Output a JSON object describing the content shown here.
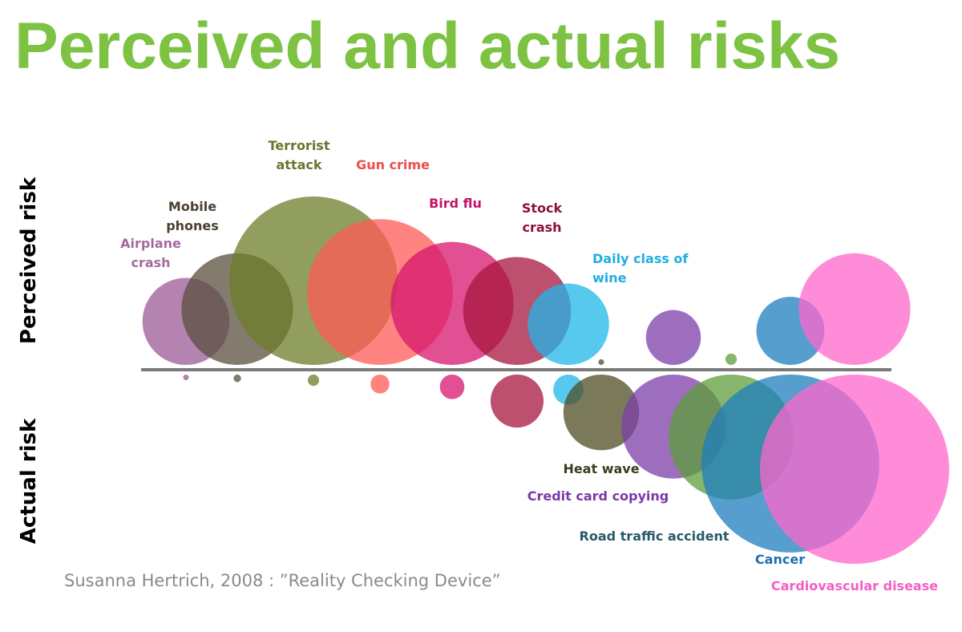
{
  "title": "Perceived and actual risks",
  "source": "Susanna Hertrich, 2008 : ”Reality Checking Device”",
  "colors": {
    "title": "#7dc242",
    "baseline": "#7a7a7a"
  },
  "chart_data": {
    "type": "bubble",
    "title": "Perceived and actual risks",
    "upper_label": "Perceived risk",
    "lower_label": "Actual risk",
    "legend": "none",
    "grid": false,
    "note": "Each risk has an upper bubble (perceived risk) and a lower bubble (actual risk); values are relative bubble sizes estimated from the figure (largest = 100).",
    "risks": [
      {
        "name": "Airplane crash",
        "label_lines": [
          "Airplane",
          "crash"
        ],
        "color": "#9c5a94",
        "perceived": 46,
        "actual": 3
      },
      {
        "name": "Mobile phones",
        "label_lines": [
          "Mobile",
          "phones"
        ],
        "color": "#5a4f3e",
        "perceived": 59,
        "actual": 4
      },
      {
        "name": "Terrorist attack",
        "label_lines": [
          "Terrorist",
          "attack"
        ],
        "color": "#6e7e2a",
        "perceived": 89,
        "actual": 6
      },
      {
        "name": "Gun crime",
        "label_lines": [
          "Gun crime"
        ],
        "color": "#ff5a55",
        "perceived": 77,
        "actual": 10
      },
      {
        "name": "Bird flu",
        "label_lines": [
          "Bird flu"
        ],
        "color": "#d6156d",
        "perceived": 65,
        "actual": 13
      },
      {
        "name": "Stock crash",
        "label_lines": [
          "Stock",
          "crash"
        ],
        "color": "#a8163f",
        "perceived": 57,
        "actual": 28
      },
      {
        "name": "Daily class of wine",
        "label_lines": [
          "Daily class of",
          "wine"
        ],
        "color": "#1fb6e8",
        "perceived": 43,
        "actual": 16
      },
      {
        "name": "Heat wave",
        "label_lines": [
          "Heat wave"
        ],
        "color": "#4d4d24",
        "perceived": 3,
        "actual": 40
      },
      {
        "name": "Credit card copying",
        "label_lines": [
          "Credit card copying"
        ],
        "color": "#7e3da8",
        "perceived": 29,
        "actual": 55
      },
      {
        "name": "Road traffic accident",
        "label_lines": [
          "Road traffic accident"
        ],
        "color": "#5c9e3a",
        "perceived": 6,
        "actual": 66
      },
      {
        "name": "Cancer",
        "label_lines": [
          "Cancer"
        ],
        "color": "#1e7dbe",
        "perceived": 36,
        "actual": 94
      },
      {
        "name": "Cardiovascular disease",
        "label_lines": [
          "Cardiovascular disease"
        ],
        "color": "#ff66cc",
        "perceived": 59,
        "actual": 100
      }
    ]
  }
}
